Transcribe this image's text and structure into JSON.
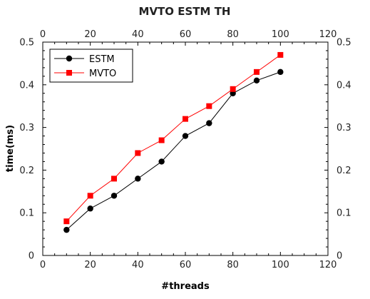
{
  "chart_data": {
    "type": "line",
    "title": "MVTO ESTM TH",
    "xlabel": "#threads",
    "ylabel": "time(ms)",
    "xlim": [
      0,
      120
    ],
    "ylim": [
      0,
      0.5
    ],
    "x_ticks": [
      0,
      20,
      40,
      60,
      80,
      100,
      120
    ],
    "y_ticks": [
      0,
      0.1,
      0.2,
      0.3,
      0.4,
      0.5
    ],
    "x_tick_labels": [
      "0",
      "20",
      "40",
      "60",
      "80",
      "100",
      "120"
    ],
    "y_tick_labels": [
      "0",
      "0.1",
      "0.2",
      "0.3",
      "0.4",
      "0.5"
    ],
    "grid": false,
    "legend_position": "top-left",
    "x": [
      10,
      20,
      30,
      40,
      50,
      60,
      70,
      80,
      90,
      100
    ],
    "series": [
      {
        "name": "ESTM",
        "color": "#000000",
        "marker": "circle",
        "values": [
          0.06,
          0.11,
          0.14,
          0.18,
          0.22,
          0.28,
          0.31,
          0.38,
          0.41,
          0.43
        ]
      },
      {
        "name": "MVTO",
        "color": "#ff0000",
        "marker": "square",
        "values": [
          0.08,
          0.14,
          0.18,
          0.24,
          0.27,
          0.32,
          0.35,
          0.39,
          0.43,
          0.47
        ]
      }
    ]
  }
}
